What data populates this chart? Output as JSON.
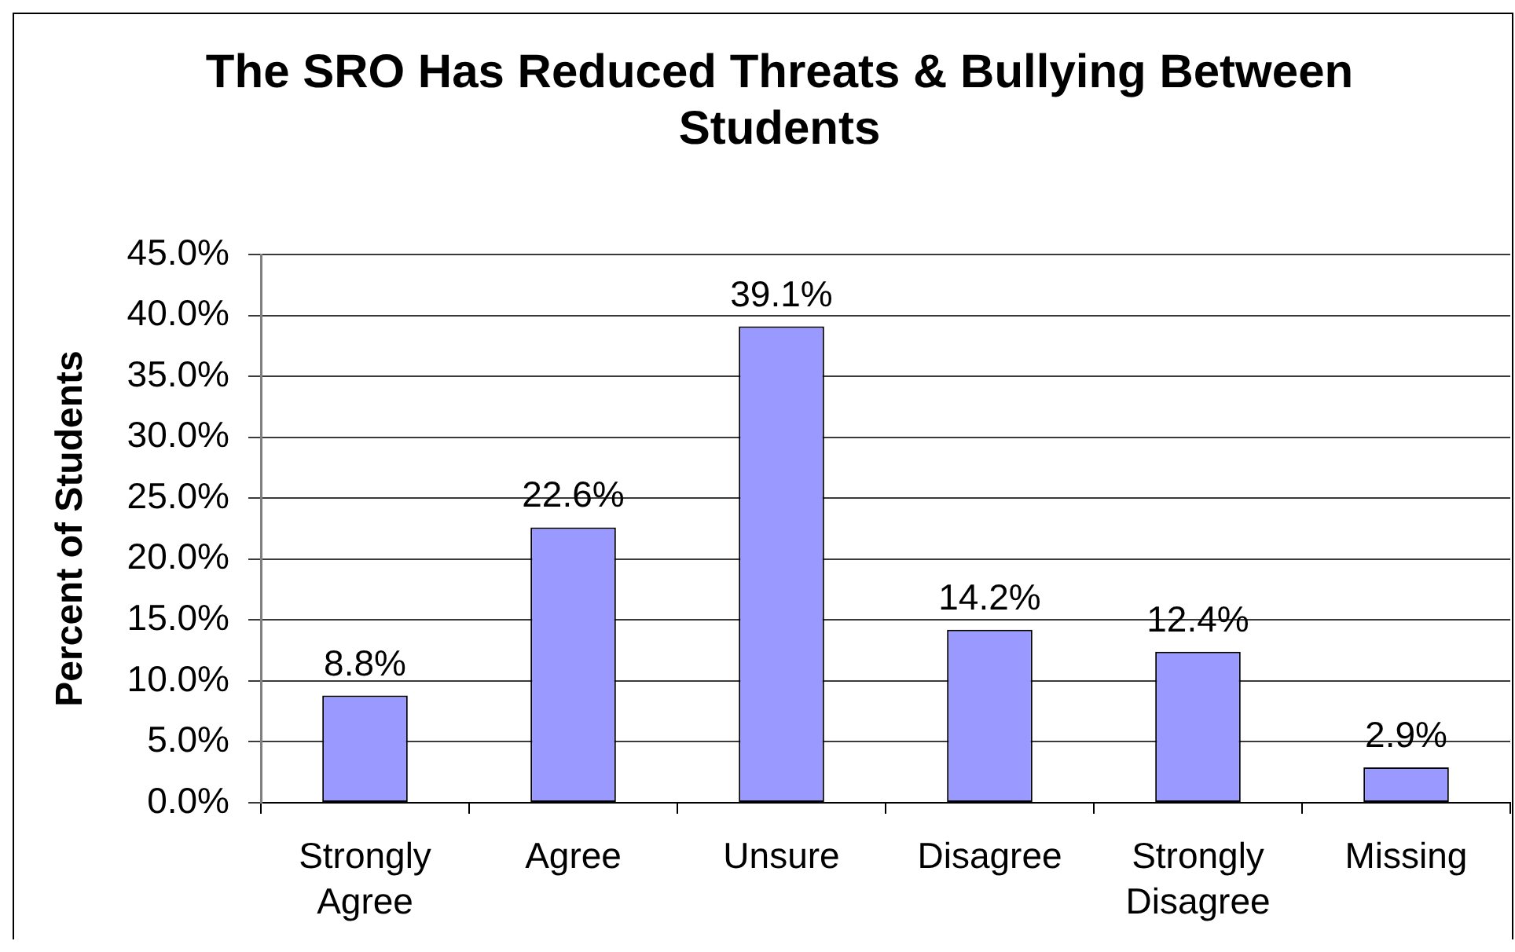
{
  "chart_data": {
    "type": "bar",
    "title": "The SRO Has Reduced Threats & Bullying Between Students",
    "ylabel": "Percent of Students",
    "categories": [
      "Strongly Agree",
      "Agree",
      "Unsure",
      "Disagree",
      "Strongly Disagree",
      "Missing"
    ],
    "values": [
      8.8,
      22.6,
      39.1,
      14.2,
      12.4,
      2.9
    ],
    "value_labels": [
      "8.8%",
      "22.6%",
      "39.1%",
      "14.2%",
      "12.4%",
      "2.9%"
    ],
    "color": "#9999ff",
    "ylim": [
      0,
      45
    ],
    "yticks": [
      {
        "value": 0,
        "label": "0.0%"
      },
      {
        "value": 5,
        "label": "5.0%"
      },
      {
        "value": 10,
        "label": "10.0%"
      },
      {
        "value": 15,
        "label": "15.0%"
      },
      {
        "value": 20,
        "label": "20.0%"
      },
      {
        "value": 25,
        "label": "25.0%"
      },
      {
        "value": 30,
        "label": "30.0%"
      },
      {
        "value": 35,
        "label": "35.0%"
      },
      {
        "value": 40,
        "label": "40.0%"
      },
      {
        "value": 45,
        "label": "45.0%"
      }
    ],
    "grid": "y"
  }
}
